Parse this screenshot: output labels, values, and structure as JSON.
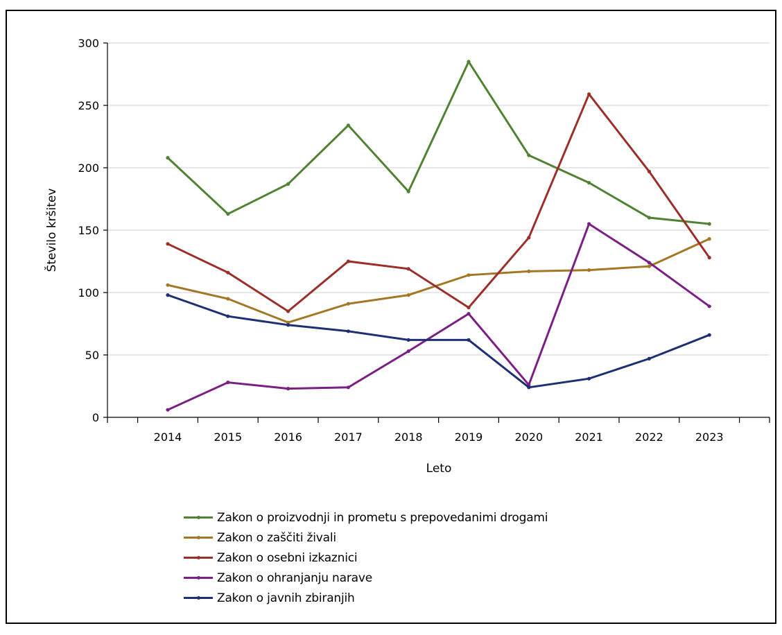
{
  "chart_data": {
    "type": "line",
    "title": "",
    "xlabel": "Leto",
    "ylabel": "Število kršitev",
    "ylim": [
      0,
      300
    ],
    "yticks": [
      0,
      50,
      100,
      150,
      200,
      250,
      300
    ],
    "grid": true,
    "legend_position": "bottom",
    "categories": [
      "2014",
      "2015",
      "2016",
      "2017",
      "2018",
      "2019",
      "2020",
      "2021",
      "2022",
      "2023"
    ],
    "series": [
      {
        "name": "Zakon o proizvodnji in prometu s prepovedanimi drogami",
        "color": "#4f8232",
        "values": [
          208,
          163,
          187,
          234,
          181,
          285,
          210,
          188,
          160,
          155
        ]
      },
      {
        "name": "Zakon o zaščiti živali",
        "color": "#a37724",
        "values": [
          106,
          95,
          76,
          91,
          98,
          114,
          117,
          118,
          121,
          143
        ]
      },
      {
        "name": "Zakon o osebni izkaznici",
        "color": "#9b2f2a",
        "values": [
          139,
          116,
          85,
          125,
          119,
          88,
          144,
          259,
          197,
          128
        ]
      },
      {
        "name": "Zakon o ohranjanju narave",
        "color": "#7a1f83",
        "values": [
          6,
          28,
          23,
          24,
          53,
          83,
          26,
          155,
          124,
          89
        ]
      },
      {
        "name": "Zakon o javnih zbiranjih",
        "color": "#1e2f73",
        "values": [
          98,
          81,
          74,
          69,
          62,
          62,
          24,
          31,
          47,
          66
        ]
      }
    ]
  }
}
